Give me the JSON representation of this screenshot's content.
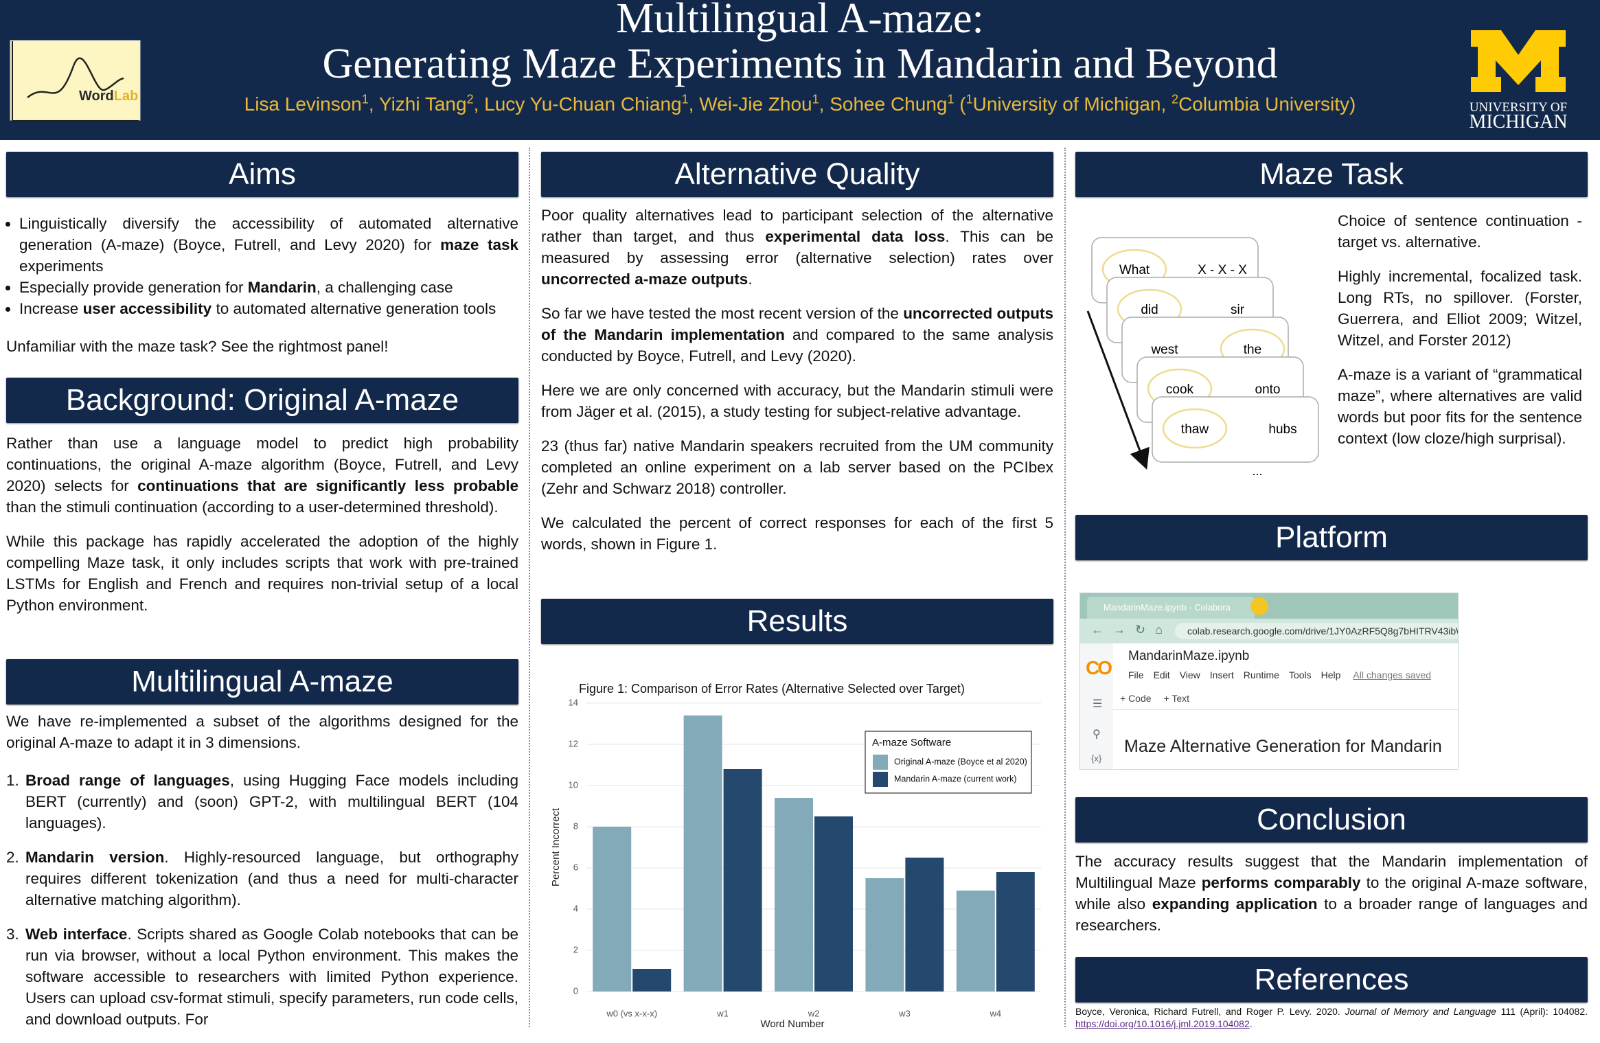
{
  "header": {
    "title_lines": [
      "Multilingual A-maze:",
      "Generating Maze Experiments in Mandarin and Beyond"
    ],
    "authors": [
      "Lisa Levinson",
      {
        "sup": "1"
      },
      ", Yizhi Tang",
      {
        "sup": "2"
      },
      ", Lucy Yu-Chuan Chiang",
      {
        "sup": "1"
      },
      ", Wei-Jie Zhou",
      {
        "sup": "1"
      },
      ", Sohee Chung",
      {
        "sup": "1"
      },
      " (",
      {
        "sup": "1"
      },
      "University of Michigan, ",
      {
        "sup": "2"
      },
      "Columbia University)"
    ],
    "wordlab_logo": [
      "Word",
      "Lab"
    ],
    "michigan_logo": [
      "UNIVERSITY OF",
      "MICHIGAN"
    ]
  },
  "aims": {
    "heading": "Aims",
    "bullets": [
      [
        "Linguistically diversify the accessibility of automated alternative generation (A-maze) (Boyce, Futrell, and Levy 2020) for ",
        {
          "bold": "maze task"
        },
        " experiments"
      ],
      [
        "Especially provide generation for ",
        {
          "bold": "Mandarin"
        },
        ", a challenging case"
      ],
      [
        "Increase ",
        {
          "bold": "user accessibility"
        },
        " to automated alternative generation tools"
      ]
    ],
    "note": "Unfamiliar with the maze task? See the rightmost panel!"
  },
  "background": {
    "heading": "Background: Original A-maze",
    "paragraphs": [
      [
        "Rather than use a language model to predict high probability continuations, the original A-maze algorithm (Boyce, Futrell, and Levy 2020) selects for ",
        {
          "bold": "continuations that are significantly less probable"
        },
        " than the stimuli continuation (according to a user-determined threshold)."
      ],
      [
        "While this package has rapidly accelerated the adoption of the highly compelling Maze task, it only includes scripts that work with pre-trained LSTMs for English and French and requires non-trivial setup of a local Python environment."
      ]
    ]
  },
  "multilingual": {
    "heading": "Multilingual A-maze",
    "intro": [
      "We have re-implemented a subset of the algorithms designed for the original A-maze to adapt it in 3 dimensions."
    ],
    "items": [
      {
        "number": "1.",
        "runs": [
          {
            "bold": "Broad range of languages"
          },
          ", using Hugging Face models including BERT (currently) and (soon) GPT-2, with multilingual BERT (104 languages)."
        ]
      },
      {
        "number": "2.",
        "runs": [
          {
            "bold": "Mandarin version"
          },
          ". Highly-resourced language, but orthography requires different tokenization (and thus a need for multi-character alternative matching algorithm)."
        ]
      },
      {
        "number": "3.",
        "runs": [
          {
            "bold": "Web interface"
          },
          ". Scripts shared as Google Colab notebooks that can be run via browser, without a local Python environment. This makes the software accessible to researchers with limited Python experience. Users can upload csv-format stimuli, specify parameters, run code cells, and download outputs. For"
        ]
      }
    ]
  },
  "alternative_quality": {
    "heading": "Alternative Quality",
    "paragraphs": [
      [
        "Poor quality alternatives lead to participant selection of the alternative rather than target, and thus ",
        {
          "bold": "experimental data loss"
        },
        ". This can be measured by assessing error (alternative selection) rates over ",
        {
          "bold": "uncorrected a-maze outputs"
        },
        "."
      ],
      [
        "So far we have tested the most recent version of the ",
        {
          "bold": "uncorrected outputs of the Mandarin implementation"
        },
        " and compared to the same analysis conducted by Boyce, Futrell, and Levy (2020)."
      ],
      [
        "Here we are only concerned with accuracy, but the Mandarin stimuli were from Jäger et al. (2015), a study testing for subject-relative advantage."
      ],
      [
        "23 (thus far) native Mandarin speakers recruited from the UM community completed an online experiment on a lab server based on the PCIbex (Zehr and Schwarz 2018) controller."
      ],
      [
        "We calculated the percent of correct responses for each of the first 5 words, shown in Figure 1."
      ]
    ]
  },
  "results": {
    "heading": "Results"
  },
  "chart_data": {
    "type": "bar",
    "title": "Figure 1: Comparison of Error Rates (Alternative Selected over Target)",
    "categories": [
      "w0 (vs x-x-x)",
      "w1",
      "w2",
      "w3",
      "w4"
    ],
    "series": [
      {
        "name": "Original A-maze (Boyce et al 2020)",
        "color": "#82aab9",
        "values": [
          8.0,
          13.4,
          9.4,
          5.5,
          4.9
        ]
      },
      {
        "name": "Mandarin A-maze (current work)",
        "color": "#24486e",
        "values": [
          1.1,
          10.8,
          8.5,
          6.5,
          5.8
        ]
      }
    ],
    "xlabel": "Word Number",
    "ylabel": "Percent Incorrect",
    "legend_title": "A-maze Software",
    "legend": "upper right",
    "ylim": [
      0,
      14
    ],
    "yticks": [
      0,
      2,
      4,
      6,
      8,
      10,
      12,
      14
    ],
    "grid": true
  },
  "maze_task": {
    "heading": "Maze Task",
    "cards": [
      {
        "left": "What",
        "right": "X - X - X",
        "circled": "left"
      },
      {
        "left": "did",
        "right": "sir",
        "circled": "left"
      },
      {
        "left": "west",
        "right": "the",
        "circled": "right"
      },
      {
        "left": "cook",
        "right": "onto",
        "circled": "left"
      },
      {
        "left": "thaw",
        "right": "hubs",
        "circled": "left"
      }
    ],
    "more": "...",
    "paragraphs": [
      [
        "Choice of sentence continuation - target vs. alternative."
      ],
      [
        "Highly incremental, focalized task. Long RTs, no spillover. (Forster, Guerrera, and Elliot 2009; Witzel, Witzel, and Forster 2012)"
      ],
      [
        "A-maze is a variant of “grammatical maze”, where alternatives are valid words but poor fits for the sentence context (low cloze/high surprisal)."
      ]
    ]
  },
  "platform": {
    "heading": "Platform",
    "tab": "MandarinMaze.ipynb - Colabora",
    "url": "colab.research.google.com/drive/1JY0AzRF5Q8g7bHITRV43ibW",
    "logo": "CO",
    "filename": "MandarinMaze.ipynb",
    "menus": [
      "File",
      "Edit",
      "View",
      "Insert",
      "Runtime",
      "Tools",
      "Help"
    ],
    "saved": "All changes saved",
    "toolbar": [
      "+ Code",
      "+ Text"
    ],
    "side_label": "{x}",
    "cell": "Maze Alternative Generation for Mandarin"
  },
  "conclusion": {
    "heading": "Conclusion",
    "paragraph": [
      "The accuracy results suggest that the Mandarin implementation of Multilingual Maze ",
      {
        "bold": "performs comparably"
      },
      " to the original A-maze software, while also ",
      {
        "bold": "expanding application"
      },
      " to a broader range of languages and researchers."
    ]
  },
  "references": {
    "heading": "References",
    "entries": [
      [
        "Boyce, Veronica, Richard Futrell, and Roger P. Levy. 2020. ",
        {
          "italic": "Journal of Memory and Language"
        },
        " 111 (April): 104082. ",
        {
          "link": "https://doi.org/10.1016/j.jml.2019.104082"
        },
        "."
      ]
    ]
  }
}
